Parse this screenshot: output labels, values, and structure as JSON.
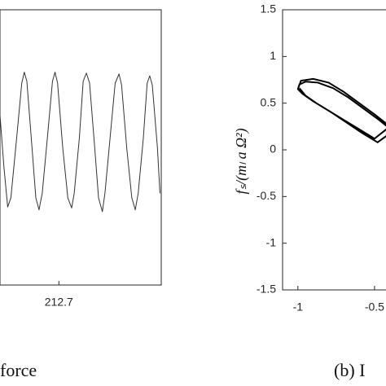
{
  "chart_data": [
    {
      "type": "line",
      "caption": "force",
      "x": [
        212.654,
        212.657,
        212.66,
        212.6625,
        212.667,
        212.671,
        212.673,
        212.675,
        212.679,
        212.682,
        212.6845,
        212.687,
        212.691,
        212.695,
        212.697,
        212.699,
        212.703,
        212.707,
        212.71,
        212.712,
        212.716,
        212.719,
        212.7215,
        212.724,
        212.728,
        212.731,
        212.734,
        212.736,
        212.74,
        212.744,
        212.747,
        212.749,
        212.753,
        212.757,
        212.7597,
        212.762,
        212.766,
        212.769,
        212.771,
        212.773,
        212.777,
        212.779
      ],
      "series": [
        {
          "color": "#333333",
          "values": [
            0.35,
            -0.2,
            -0.65,
            -0.55,
            0.1,
            0.7,
            0.82,
            0.72,
            0.0,
            -0.55,
            -0.68,
            -0.5,
            0.1,
            0.72,
            0.82,
            0.7,
            0.0,
            -0.55,
            -0.66,
            -0.5,
            0.1,
            0.72,
            0.81,
            0.7,
            0.0,
            -0.55,
            -0.7,
            -0.5,
            0.1,
            0.7,
            0.8,
            0.68,
            0.0,
            -0.55,
            -0.68,
            -0.5,
            0.1,
            0.7,
            0.78,
            0.68,
            0.0,
            -0.5
          ]
        }
      ],
      "xlim": [
        212.654,
        212.78
      ],
      "xticks": [
        212.7
      ],
      "ylim": [
        -1.5,
        1.5
      ]
    },
    {
      "type": "line",
      "caption": "(b) I",
      "ylabel": "fₛ/(mₗ a Ω²)",
      "x": [
        -1.0,
        -0.98,
        -0.9,
        -0.8,
        -0.7,
        -0.6,
        -0.5,
        -0.4,
        -0.5,
        -0.6,
        -0.7,
        -0.8,
        -0.9,
        -0.97,
        -1.0,
        -0.99,
        -0.95,
        -0.87,
        -0.77,
        -0.67,
        -0.57,
        -0.47,
        -0.38,
        -0.48,
        -0.58,
        -0.68,
        -0.78,
        -0.88,
        -0.95,
        -0.99
      ],
      "series": [
        {
          "color": "#000000",
          "values": [
            0.65,
            0.74,
            0.76,
            0.72,
            0.62,
            0.5,
            0.38,
            0.25,
            0.12,
            0.22,
            0.32,
            0.42,
            0.52,
            0.6,
            0.65,
            0.7,
            0.73,
            0.72,
            0.66,
            0.56,
            0.44,
            0.32,
            0.2,
            0.08,
            0.18,
            0.29,
            0.4,
            0.5,
            0.58,
            0.66
          ]
        }
      ],
      "xlim": [
        -1.1,
        1.1
      ],
      "xticks": [
        -1,
        -0.5
      ],
      "ylim": [
        -1.5,
        1.5
      ],
      "yticks": [
        -1.5,
        -1,
        -0.5,
        0,
        0.5,
        1,
        1.5
      ]
    }
  ]
}
